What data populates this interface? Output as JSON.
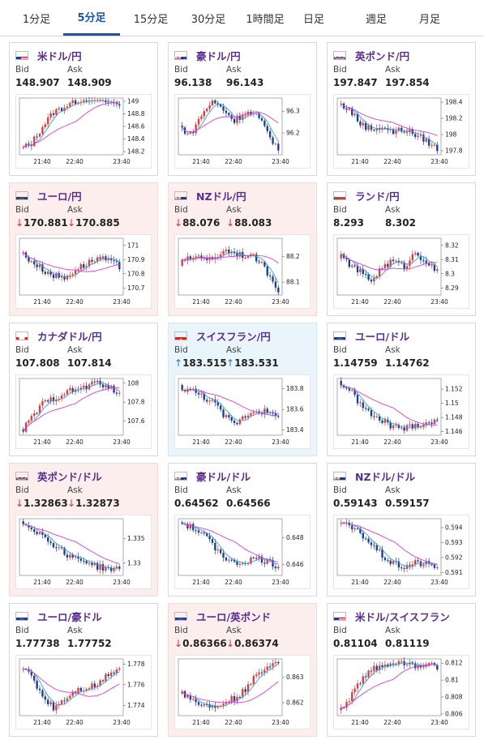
{
  "tabs": [
    "1分足",
    "5分足",
    "15分足",
    "30分足",
    "1時間足",
    "日足",
    "週足",
    "月足"
  ],
  "active_tab": 1,
  "bid_label": "Bid",
  "ask_label": "Ask",
  "colors": {
    "up": "#e23b3b",
    "down": "#1c3f94",
    "ma_fast": "#3aa0d8",
    "ma_slow": "#d53fd5",
    "title": "#5a2d91"
  },
  "cards": [
    {
      "pair": "米ドル/円",
      "flag": "us-flag-icon",
      "bid": "148.907",
      "ask": "148.909",
      "trend": "none",
      "chart_data": {
        "type": "candlestick",
        "x_ticks": [
          "21:40",
          "22:40",
          "23:40"
        ],
        "y_ticks": [
          "149",
          "148.8",
          "148.6",
          "148.4",
          "148.2"
        ],
        "ylim": [
          148.15,
          149.05
        ],
        "shape": [
          0.1,
          0.2,
          0.5,
          0.75,
          0.85,
          0.95,
          1.0,
          0.98,
          0.92,
          0.88
        ]
      }
    },
    {
      "pair": "豪ドル/円",
      "flag": "au-flag-icon",
      "bid": "96.138",
      "ask": "96.143",
      "trend": "none",
      "chart_data": {
        "type": "candlestick",
        "x_ticks": [
          "21:40",
          "22:40",
          "23:40"
        ],
        "y_ticks": [
          "96.3",
          "96.2"
        ],
        "ylim": [
          96.1,
          96.36
        ],
        "shape": [
          0.5,
          0.35,
          0.7,
          0.95,
          0.8,
          0.6,
          0.75,
          0.7,
          0.4,
          0.1
        ]
      }
    },
    {
      "pair": "英ポンド/円",
      "flag": "gb-flag-icon",
      "bid": "197.847",
      "ask": "197.854",
      "trend": "none",
      "chart_data": {
        "type": "candlestick",
        "x_ticks": [
          "21:40",
          "22:40",
          "23:40"
        ],
        "y_ticks": [
          "198.4",
          "198.2",
          "198",
          "197.8"
        ],
        "ylim": [
          197.75,
          198.45
        ],
        "shape": [
          0.9,
          0.8,
          0.55,
          0.45,
          0.5,
          0.4,
          0.45,
          0.35,
          0.25,
          0.1
        ]
      }
    },
    {
      "pair": "ユーロ/円",
      "flag": "eu-flag-icon",
      "bid": "170.881",
      "ask": "170.885",
      "trend": "down",
      "chart_data": {
        "type": "candlestick",
        "x_ticks": [
          "21:40",
          "22:40",
          "23:40"
        ],
        "y_ticks": [
          "171",
          "170.9",
          "170.8",
          "170.7"
        ],
        "ylim": [
          170.65,
          171.05
        ],
        "shape": [
          0.75,
          0.6,
          0.45,
          0.35,
          0.3,
          0.45,
          0.55,
          0.65,
          0.6,
          0.5
        ]
      }
    },
    {
      "pair": "NZドル/円",
      "flag": "nz-flag-icon",
      "bid": "88.076",
      "ask": "88.083",
      "trend": "down",
      "chart_data": {
        "type": "candlestick",
        "x_ticks": [
          "21:40",
          "22:40",
          "23:40"
        ],
        "y_ticks": [
          "88.2",
          "88.1"
        ],
        "ylim": [
          88.05,
          88.27
        ],
        "shape": [
          0.55,
          0.65,
          0.7,
          0.6,
          0.8,
          0.75,
          0.7,
          0.65,
          0.4,
          0.1
        ]
      }
    },
    {
      "pair": "ランド/円",
      "flag": "za-flag-icon",
      "bid": "8.293",
      "ask": "8.302",
      "trend": "none",
      "chart_data": {
        "type": "candlestick",
        "x_ticks": [
          "21:40",
          "22:40",
          "23:40"
        ],
        "y_ticks": [
          "8.32",
          "8.31",
          "8.3",
          "8.29"
        ],
        "ylim": [
          8.285,
          8.325
        ],
        "shape": [
          0.7,
          0.55,
          0.4,
          0.25,
          0.5,
          0.6,
          0.5,
          0.75,
          0.6,
          0.4
        ]
      }
    },
    {
      "pair": "カナダドル/円",
      "flag": "ca-flag-icon",
      "bid": "107.808",
      "ask": "107.814",
      "trend": "none",
      "chart_data": {
        "type": "candlestick",
        "x_ticks": [
          "21:40",
          "22:40",
          "23:40"
        ],
        "y_ticks": [
          "108",
          "107.8",
          "107.6"
        ],
        "ylim": [
          107.45,
          108.05
        ],
        "shape": [
          0.05,
          0.3,
          0.55,
          0.65,
          0.75,
          0.8,
          0.85,
          0.95,
          0.85,
          0.7
        ]
      }
    },
    {
      "pair": "スイスフラン/円",
      "flag": "ch-flag-icon",
      "bid": "183.515",
      "ask": "183.531",
      "trend": "up",
      "chart_data": {
        "type": "candlestick",
        "x_ticks": [
          "21:40",
          "22:40",
          "23:40"
        ],
        "y_ticks": [
          "183.8",
          "183.6",
          "183.4"
        ],
        "ylim": [
          183.35,
          183.9
        ],
        "shape": [
          0.85,
          0.8,
          0.7,
          0.6,
          0.35,
          0.2,
          0.35,
          0.45,
          0.4,
          0.3
        ]
      }
    },
    {
      "pair": "ユーロ/ドル",
      "flag": "eu-flag-icon",
      "bid": "1.14759",
      "ask": "1.14762",
      "trend": "none",
      "chart_data": {
        "type": "candlestick",
        "x_ticks": [
          "21:40",
          "22:40",
          "23:40"
        ],
        "y_ticks": [
          "1.152",
          "1.15",
          "1.148",
          "1.146"
        ],
        "ylim": [
          1.1455,
          1.1535
        ],
        "shape": [
          0.95,
          0.8,
          0.55,
          0.35,
          0.25,
          0.15,
          0.12,
          0.18,
          0.22,
          0.25
        ]
      }
    },
    {
      "pair": "英ポンド/ドル",
      "flag": "gb-flag-icon",
      "bid": "1.32863",
      "ask": "1.32873",
      "trend": "down",
      "chart_data": {
        "type": "candlestick",
        "x_ticks": [
          "21:40",
          "22:40",
          "23:40"
        ],
        "y_ticks": [
          "1.335",
          "1.33"
        ],
        "ylim": [
          1.3275,
          1.339
        ],
        "shape": [
          0.95,
          0.85,
          0.7,
          0.55,
          0.4,
          0.3,
          0.25,
          0.15,
          0.12,
          0.1
        ]
      }
    },
    {
      "pair": "豪ドル/ドル",
      "flag": "au-flag-icon",
      "bid": "0.64562",
      "ask": "0.64566",
      "trend": "none",
      "chart_data": {
        "type": "candlestick",
        "x_ticks": [
          "21:40",
          "22:40",
          "23:40"
        ],
        "y_ticks": [
          "0.648",
          "0.646"
        ],
        "ylim": [
          0.6452,
          0.6494
        ],
        "shape": [
          0.95,
          0.85,
          0.75,
          0.55,
          0.35,
          0.2,
          0.25,
          0.3,
          0.25,
          0.15
        ]
      }
    },
    {
      "pair": "NZドル/ドル",
      "flag": "nz-flag-icon",
      "bid": "0.59143",
      "ask": "0.59157",
      "trend": "none",
      "chart_data": {
        "type": "candlestick",
        "x_ticks": [
          "21:40",
          "22:40",
          "23:40"
        ],
        "y_ticks": [
          "0.594",
          "0.593",
          "0.592",
          "0.591"
        ],
        "ylim": [
          0.5908,
          0.5946
        ],
        "shape": [
          0.95,
          0.85,
          0.75,
          0.55,
          0.35,
          0.2,
          0.15,
          0.22,
          0.2,
          0.15
        ]
      }
    },
    {
      "pair": "ユーロ/豪ドル",
      "flag": "eu-flag-icon",
      "bid": "1.77738",
      "ask": "1.77752",
      "trend": "none",
      "chart_data": {
        "type": "candlestick",
        "x_ticks": [
          "21:40",
          "22:40",
          "23:40"
        ],
        "y_ticks": [
          "1.778",
          "1.776",
          "1.774"
        ],
        "ylim": [
          1.773,
          1.7785
        ],
        "shape": [
          0.85,
          0.7,
          0.35,
          0.15,
          0.3,
          0.45,
          0.5,
          0.55,
          0.75,
          0.85
        ]
      }
    },
    {
      "pair": "ユーロ/英ポンド",
      "flag": "eu-flag-icon",
      "bid": "0.86366",
      "ask": "0.86374",
      "trend": "down",
      "chart_data": {
        "type": "candlestick",
        "x_ticks": [
          "21:40",
          "22:40",
          "23:40"
        ],
        "y_ticks": [
          "0.863",
          "0.862"
        ],
        "ylim": [
          0.8615,
          0.8637
        ],
        "shape": [
          0.45,
          0.3,
          0.2,
          0.15,
          0.25,
          0.3,
          0.45,
          0.7,
          0.9,
          0.95
        ]
      }
    },
    {
      "pair": "米ドル/スイスフラン",
      "flag": "us-flag-icon",
      "bid": "0.81104",
      "ask": "0.81119",
      "trend": "none",
      "chart_data": {
        "type": "candlestick",
        "x_ticks": [
          "21:40",
          "22:40",
          "23:40"
        ],
        "y_ticks": [
          "0.812",
          "0.81",
          "0.808",
          "0.806"
        ],
        "ylim": [
          0.8058,
          0.8125
        ],
        "shape": [
          0.05,
          0.3,
          0.6,
          0.8,
          0.9,
          0.95,
          0.92,
          0.88,
          0.9,
          0.85
        ]
      }
    }
  ]
}
